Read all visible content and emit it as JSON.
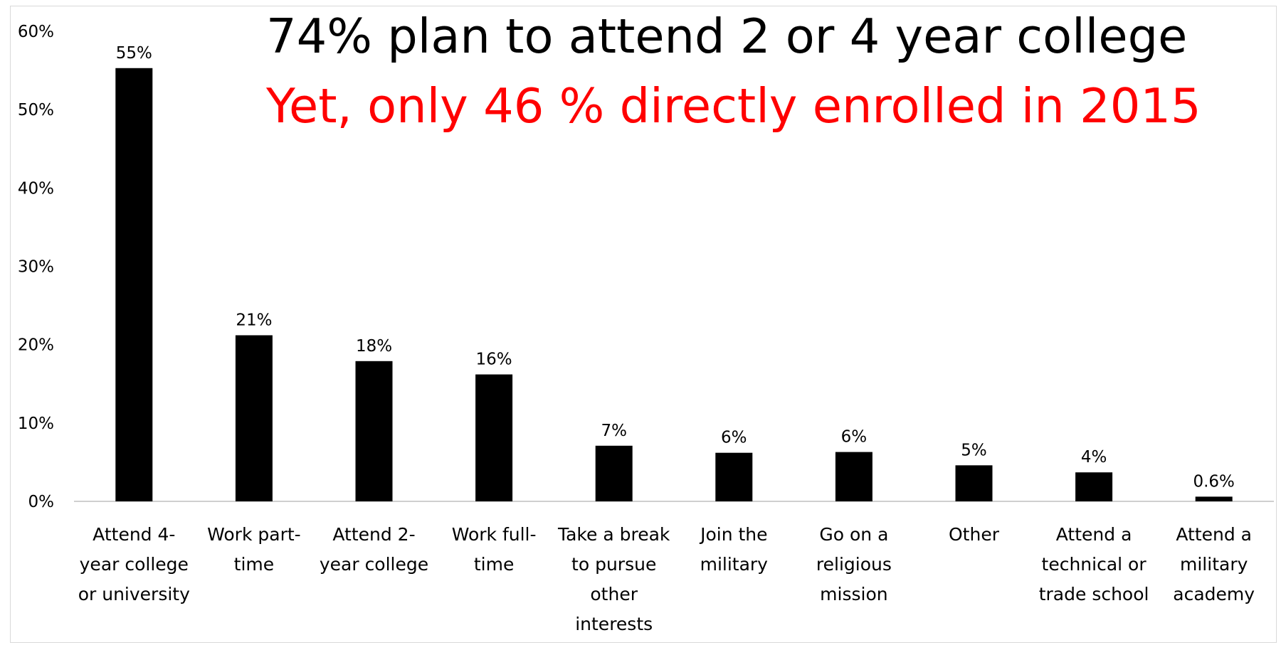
{
  "headline": {
    "line1": "74% plan to attend 2 or 4 year college",
    "line2": "Yet, only 46 % directly enrolled in 2015"
  },
  "colors": {
    "bar": "#000000",
    "headline1": "#000000",
    "headline2": "#ff0000",
    "axis": "#bfbfbf",
    "text": "#000000"
  },
  "chart_data": {
    "type": "bar",
    "categories": [
      [
        "Attend 4-",
        "year college",
        "or university"
      ],
      [
        "Work part-",
        "time"
      ],
      [
        "Attend 2-",
        "year college"
      ],
      [
        "Work full-",
        "time"
      ],
      [
        "Take a break",
        "to pursue",
        "other",
        "interests"
      ],
      [
        "Join the",
        "military"
      ],
      [
        "Go on a",
        "religious",
        "mission"
      ],
      [
        "Other"
      ],
      [
        "Attend a",
        "technical or",
        "trade school"
      ],
      [
        "Attend a",
        "military",
        "academy"
      ]
    ],
    "values": [
      55.3,
      21.2,
      17.9,
      16.2,
      7.1,
      6.2,
      6.3,
      4.6,
      3.7,
      0.6
    ],
    "data_labels": [
      "55%",
      "21%",
      "18%",
      "16%",
      "7%",
      "6%",
      "6%",
      "5%",
      "4%",
      "0.6%"
    ],
    "y_ticks": [
      "0%",
      "10%",
      "20%",
      "30%",
      "40%",
      "50%",
      "60%"
    ],
    "ylim": [
      0,
      60
    ],
    "grid": false,
    "legend": "none",
    "title": "",
    "xlabel": "",
    "ylabel": ""
  }
}
